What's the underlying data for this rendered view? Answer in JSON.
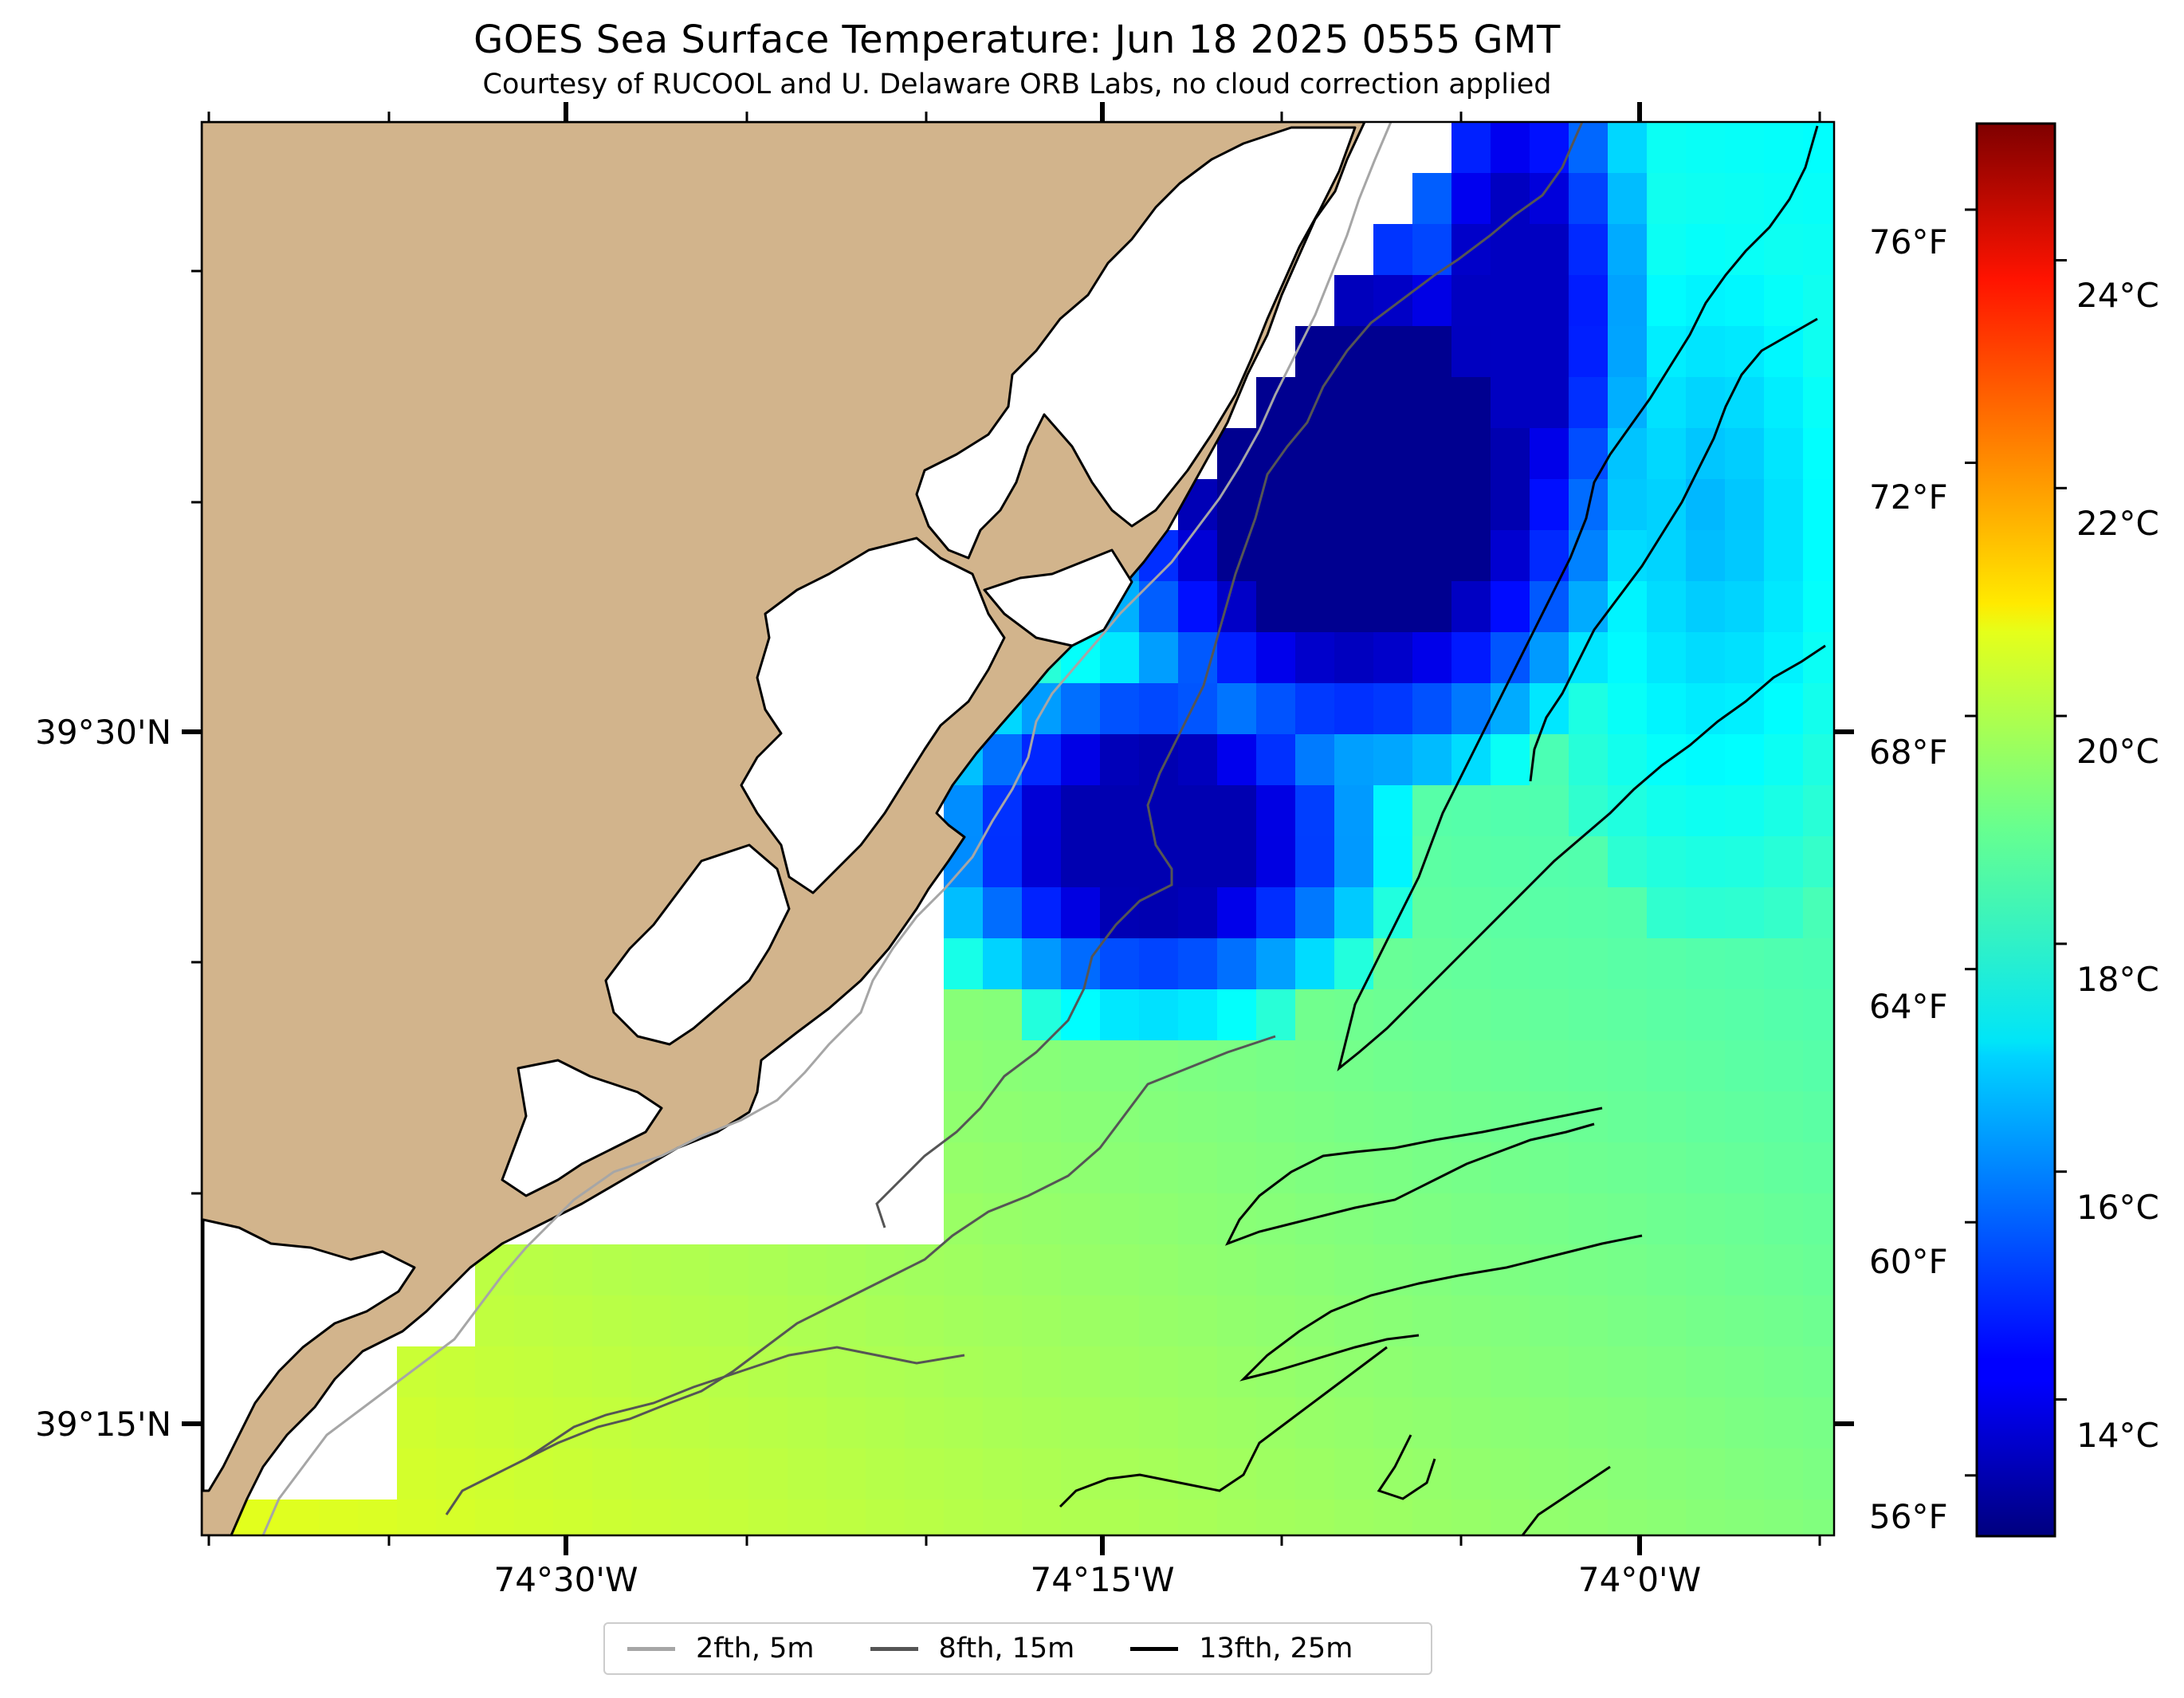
{
  "header": {
    "title": "GOES Sea Surface Temperature: Jun 18 2025 0555 GMT",
    "subtitle": "Courtesy of RUCOOL and U. Delaware ORB Labs, no cloud correction applied"
  },
  "axes": {
    "lon_labels": [
      "74°30'W",
      "74°15'W",
      "74°0'W"
    ],
    "lat_labels": [
      "39°30'N",
      "39°15'N"
    ],
    "fahrenheit_labels": [
      "76°F",
      "72°F",
      "68°F",
      "64°F",
      "60°F",
      "56°F"
    ],
    "celsius_labels": [
      "24°C",
      "22°C",
      "20°C",
      "18°C",
      "16°C",
      "14°C"
    ]
  },
  "colorbar": {
    "colormap": "jet",
    "celsius_range": [
      12.8,
      25.2
    ],
    "celsius_ticks": [
      24,
      22,
      20,
      18,
      16,
      14
    ],
    "fahrenheit_ticks": [
      76,
      72,
      68,
      64,
      60,
      56
    ]
  },
  "legend": {
    "items": [
      {
        "label": "2fth, 5m",
        "color": "#a6a6a6"
      },
      {
        "label": "8fth, 15m",
        "color": "#555555"
      },
      {
        "label": "13fth, 25m",
        "color": "#000000"
      }
    ]
  },
  "colors": {
    "land": "#d2b48c",
    "coastline": "#000000",
    "no_data": "#ffffff"
  }
}
